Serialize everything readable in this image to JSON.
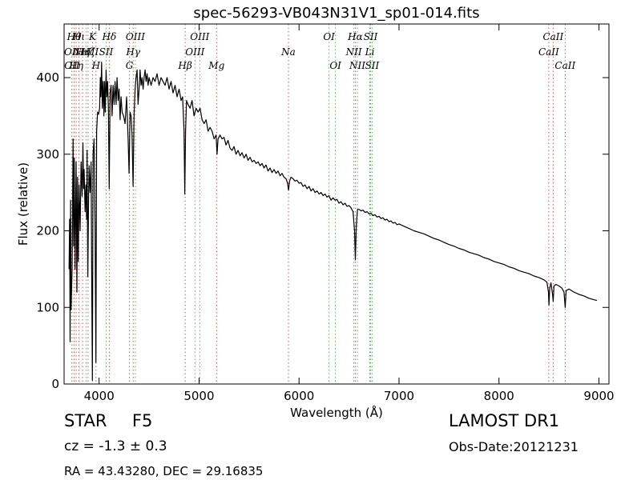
{
  "chart_data": {
    "type": "line",
    "title": "spec-56293-VB043N31V1_sp01-014.fits",
    "xlabel": "Wavelength (Å)",
    "ylabel": "Flux (relative)",
    "xlim": [
      3650,
      9100
    ],
    "ylim": [
      0,
      470
    ],
    "xticks": [
      4000,
      5000,
      6000,
      7000,
      8000,
      9000
    ],
    "yticks": [
      0,
      100,
      200,
      300,
      400
    ],
    "grid": false,
    "line_color": "#000000",
    "marker_color_emission": "#5cb85c",
    "marker_color_absorption": "#d9534f",
    "spectrum": [
      [
        3700,
        150
      ],
      [
        3705,
        215
      ],
      [
        3710,
        55
      ],
      [
        3715,
        240
      ],
      [
        3720,
        97
      ],
      [
        3730,
        150
      ],
      [
        3740,
        320
      ],
      [
        3745,
        180
      ],
      [
        3752,
        295
      ],
      [
        3760,
        150
      ],
      [
        3770,
        290
      ],
      [
        3778,
        120
      ],
      [
        3785,
        270
      ],
      [
        3792,
        160
      ],
      [
        3800,
        260
      ],
      [
        3810,
        200
      ],
      [
        3820,
        290
      ],
      [
        3830,
        245
      ],
      [
        3838,
        315
      ],
      [
        3845,
        255
      ],
      [
        3850,
        280
      ],
      [
        3860,
        225
      ],
      [
        3868,
        260
      ],
      [
        3875,
        215
      ],
      [
        3880,
        305
      ],
      [
        3887,
        140
      ],
      [
        3895,
        245
      ],
      [
        3900,
        285
      ],
      [
        3910,
        250
      ],
      [
        3920,
        290
      ],
      [
        3926,
        150
      ],
      [
        3933,
        5
      ],
      [
        3940,
        300
      ],
      [
        3950,
        320
      ],
      [
        3960,
        200
      ],
      [
        3968,
        28
      ],
      [
        3975,
        330
      ],
      [
        3985,
        355
      ],
      [
        3995,
        352
      ],
      [
        4005,
        360
      ],
      [
        4012,
        400
      ],
      [
        4018,
        375
      ],
      [
        4025,
        420
      ],
      [
        4032,
        360
      ],
      [
        4040,
        395
      ],
      [
        4048,
        350
      ],
      [
        4055,
        395
      ],
      [
        4062,
        355
      ],
      [
        4070,
        410
      ],
      [
        4078,
        375
      ],
      [
        4085,
        395
      ],
      [
        4093,
        360
      ],
      [
        4101,
        255
      ],
      [
        4110,
        380
      ],
      [
        4120,
        390
      ],
      [
        4130,
        350
      ],
      [
        4140,
        390
      ],
      [
        4150,
        365
      ],
      [
        4160,
        395
      ],
      [
        4170,
        365
      ],
      [
        4180,
        400
      ],
      [
        4190,
        370
      ],
      [
        4200,
        385
      ],
      [
        4210,
        345
      ],
      [
        4220,
        375
      ],
      [
        4230,
        355
      ],
      [
        4245,
        350
      ],
      [
        4260,
        340
      ],
      [
        4275,
        375
      ],
      [
        4290,
        320
      ],
      [
        4300,
        275
      ],
      [
        4310,
        355
      ],
      [
        4320,
        350
      ],
      [
        4330,
        325
      ],
      [
        4340,
        258
      ],
      [
        4350,
        350
      ],
      [
        4360,
        385
      ],
      [
        4370,
        400
      ],
      [
        4380,
        410
      ],
      [
        4390,
        365
      ],
      [
        4400,
        385
      ],
      [
        4410,
        410
      ],
      [
        4420,
        390
      ],
      [
        4430,
        400
      ],
      [
        4440,
        385
      ],
      [
        4450,
        400
      ],
      [
        4460,
        410
      ],
      [
        4470,
        395
      ],
      [
        4480,
        405
      ],
      [
        4490,
        390
      ],
      [
        4500,
        400
      ],
      [
        4520,
        390
      ],
      [
        4540,
        400
      ],
      [
        4560,
        395
      ],
      [
        4580,
        405
      ],
      [
        4600,
        390
      ],
      [
        4620,
        400
      ],
      [
        4640,
        395
      ],
      [
        4660,
        390
      ],
      [
        4680,
        400
      ],
      [
        4700,
        385
      ],
      [
        4720,
        395
      ],
      [
        4740,
        380
      ],
      [
        4760,
        390
      ],
      [
        4780,
        375
      ],
      [
        4800,
        385
      ],
      [
        4820,
        370
      ],
      [
        4835,
        375
      ],
      [
        4850,
        330
      ],
      [
        4857,
        248
      ],
      [
        4865,
        330
      ],
      [
        4875,
        370
      ],
      [
        4890,
        365
      ],
      [
        4910,
        360
      ],
      [
        4930,
        370
      ],
      [
        4950,
        350
      ],
      [
        4970,
        360
      ],
      [
        4990,
        355
      ],
      [
        5010,
        360
      ],
      [
        5030,
        345
      ],
      [
        5050,
        340
      ],
      [
        5070,
        345
      ],
      [
        5090,
        330
      ],
      [
        5110,
        335
      ],
      [
        5130,
        330
      ],
      [
        5150,
        320
      ],
      [
        5170,
        325
      ],
      [
        5180,
        300
      ],
      [
        5190,
        320
      ],
      [
        5210,
        325
      ],
      [
        5230,
        320
      ],
      [
        5250,
        322
      ],
      [
        5270,
        312
      ],
      [
        5290,
        318
      ],
      [
        5310,
        308
      ],
      [
        5330,
        305
      ],
      [
        5350,
        310
      ],
      [
        5370,
        300
      ],
      [
        5390,
        305
      ],
      [
        5410,
        298
      ],
      [
        5430,
        302
      ],
      [
        5450,
        295
      ],
      [
        5470,
        300
      ],
      [
        5490,
        292
      ],
      [
        5510,
        296
      ],
      [
        5530,
        290
      ],
      [
        5550,
        292
      ],
      [
        5570,
        288
      ],
      [
        5590,
        290
      ],
      [
        5610,
        285
      ],
      [
        5630,
        288
      ],
      [
        5650,
        282
      ],
      [
        5670,
        286
      ],
      [
        5690,
        278
      ],
      [
        5710,
        282
      ],
      [
        5730,
        276
      ],
      [
        5750,
        280
      ],
      [
        5770,
        275
      ],
      [
        5790,
        278
      ],
      [
        5810,
        272
      ],
      [
        5830,
        275
      ],
      [
        5850,
        270
      ],
      [
        5870,
        268
      ],
      [
        5885,
        262
      ],
      [
        5895,
        253
      ],
      [
        5905,
        265
      ],
      [
        5920,
        270
      ],
      [
        5940,
        268
      ],
      [
        5960,
        265
      ],
      [
        5980,
        266
      ],
      [
        6000,
        262
      ],
      [
        6020,
        263
      ],
      [
        6040,
        258
      ],
      [
        6060,
        260
      ],
      [
        6080,
        255
      ],
      [
        6100,
        258
      ],
      [
        6120,
        252
      ],
      [
        6140,
        255
      ],
      [
        6160,
        250
      ],
      [
        6180,
        252
      ],
      [
        6200,
        248
      ],
      [
        6220,
        250
      ],
      [
        6240,
        246
      ],
      [
        6260,
        248
      ],
      [
        6280,
        244
      ],
      [
        6300,
        246
      ],
      [
        6320,
        240
      ],
      [
        6340,
        243
      ],
      [
        6360,
        240
      ],
      [
        6380,
        241
      ],
      [
        6400,
        236
      ],
      [
        6420,
        238
      ],
      [
        6440,
        234
      ],
      [
        6460,
        236
      ],
      [
        6480,
        232
      ],
      [
        6500,
        233
      ],
      [
        6520,
        230
      ],
      [
        6540,
        225
      ],
      [
        6555,
        200
      ],
      [
        6563,
        162
      ],
      [
        6572,
        205
      ],
      [
        6585,
        228
      ],
      [
        6600,
        228
      ],
      [
        6620,
        226
      ],
      [
        6640,
        227
      ],
      [
        6660,
        224
      ],
      [
        6680,
        225
      ],
      [
        6700,
        222
      ],
      [
        6720,
        223
      ],
      [
        6740,
        220
      ],
      [
        6760,
        221
      ],
      [
        6780,
        218
      ],
      [
        6800,
        219
      ],
      [
        6820,
        216
      ],
      [
        6840,
        217
      ],
      [
        6860,
        214
      ],
      [
        6880,
        215
      ],
      [
        6900,
        212
      ],
      [
        6920,
        213
      ],
      [
        6940,
        210
      ],
      [
        6960,
        211
      ],
      [
        6980,
        208
      ],
      [
        7000,
        209
      ],
      [
        7050,
        206
      ],
      [
        7100,
        203
      ],
      [
        7150,
        200
      ],
      [
        7200,
        198
      ],
      [
        7250,
        196
      ],
      [
        7300,
        193
      ],
      [
        7350,
        190
      ],
      [
        7400,
        188
      ],
      [
        7450,
        185
      ],
      [
        7500,
        182
      ],
      [
        7550,
        180
      ],
      [
        7600,
        177
      ],
      [
        7650,
        175
      ],
      [
        7700,
        172
      ],
      [
        7750,
        170
      ],
      [
        7800,
        168
      ],
      [
        7850,
        165
      ],
      [
        7900,
        163
      ],
      [
        7950,
        160
      ],
      [
        8000,
        158
      ],
      [
        8050,
        156
      ],
      [
        8100,
        153
      ],
      [
        8150,
        151
      ],
      [
        8200,
        148
      ],
      [
        8250,
        146
      ],
      [
        8300,
        144
      ],
      [
        8350,
        141
      ],
      [
        8400,
        139
      ],
      [
        8450,
        136
      ],
      [
        8480,
        133
      ],
      [
        8495,
        120
      ],
      [
        8500,
        103
      ],
      [
        8508,
        125
      ],
      [
        8520,
        132
      ],
      [
        8535,
        118
      ],
      [
        8542,
        108
      ],
      [
        8550,
        128
      ],
      [
        8570,
        130
      ],
      [
        8600,
        128
      ],
      [
        8630,
        125
      ],
      [
        8650,
        120
      ],
      [
        8662,
        100
      ],
      [
        8672,
        122
      ],
      [
        8700,
        124
      ],
      [
        8750,
        120
      ],
      [
        8800,
        117
      ],
      [
        8850,
        115
      ],
      [
        8900,
        112
      ],
      [
        8950,
        110
      ],
      [
        8980,
        109
      ]
    ],
    "lines": [
      {
        "w": 3727,
        "label": "OII",
        "row": 2,
        "type": "emission"
      },
      {
        "w": 3729,
        "label": "OII",
        "row": 3,
        "type": "emission"
      },
      {
        "w": 3750,
        "label": "Hθ",
        "row": 1,
        "type": "absorption"
      },
      {
        "w": 3771,
        "label": "Hη",
        "row": 3,
        "type": "absorption"
      },
      {
        "w": 3798,
        "label": "Hι",
        "row": 1,
        "type": "absorption"
      },
      {
        "w": 3835,
        "label": "Hη",
        "row": 2,
        "type": "absorption"
      },
      {
        "w": 3869,
        "label": "NeIII",
        "row": 2,
        "type": "emission"
      },
      {
        "w": 3889,
        "label": "Hζ",
        "row": 2,
        "type": "absorption"
      },
      {
        "w": 3934,
        "label": "K",
        "row": 1,
        "type": "absorption"
      },
      {
        "w": 3969,
        "label": "H",
        "row": 3,
        "type": "absorption"
      },
      {
        "w": 4071,
        "label": "SII",
        "row": 2,
        "type": "emission"
      },
      {
        "w": 4102,
        "label": "Hδ",
        "row": 1,
        "type": "absorption"
      },
      {
        "w": 4304,
        "label": "G",
        "row": 3,
        "type": "absorption"
      },
      {
        "w": 4341,
        "label": "Hγ",
        "row": 2,
        "type": "absorption"
      },
      {
        "w": 4363,
        "label": "OIII",
        "row": 1,
        "type": "emission"
      },
      {
        "w": 4861,
        "label": "Hβ",
        "row": 3,
        "type": "absorption"
      },
      {
        "w": 4959,
        "label": "OIII",
        "row": 2,
        "type": "emission"
      },
      {
        "w": 5007,
        "label": "OIII",
        "row": 1,
        "type": "emission"
      },
      {
        "w": 5175,
        "label": "Mg",
        "row": 3,
        "type": "absorption"
      },
      {
        "w": 5894,
        "label": "Na",
        "row": 2,
        "type": "absorption"
      },
      {
        "w": 6300,
        "label": "OI",
        "row": 1,
        "type": "emission"
      },
      {
        "w": 6364,
        "label": "OI",
        "row": 3,
        "type": "emission"
      },
      {
        "w": 6548,
        "label": "NII",
        "row": 2,
        "type": "emission"
      },
      {
        "w": 6563,
        "label": "Hα",
        "row": 1,
        "type": "absorption"
      },
      {
        "w": 6583,
        "label": "NII",
        "row": 3,
        "type": "emission"
      },
      {
        "w": 6708,
        "label": "Li",
        "row": 2,
        "type": "absorption"
      },
      {
        "w": 6716,
        "label": "SII",
        "row": 1,
        "type": "emission"
      },
      {
        "w": 6731,
        "label": "SII",
        "row": 3,
        "type": "emission"
      },
      {
        "w": 8498,
        "label": "CaII",
        "row": 2,
        "type": "absorption"
      },
      {
        "w": 8542,
        "label": "CaII",
        "row": 1,
        "type": "absorption"
      },
      {
        "w": 8662,
        "label": "CaII",
        "row": 3,
        "type": "absorption"
      }
    ]
  },
  "info": {
    "object_class": "STAR",
    "subclass": "F5",
    "redshift": "cz = -1.3 ± 0.3",
    "survey": "LAMOST DR1",
    "obs_date": "Obs-Date:20121231",
    "coords": "RA = 43.43280, DEC = 29.16835"
  }
}
